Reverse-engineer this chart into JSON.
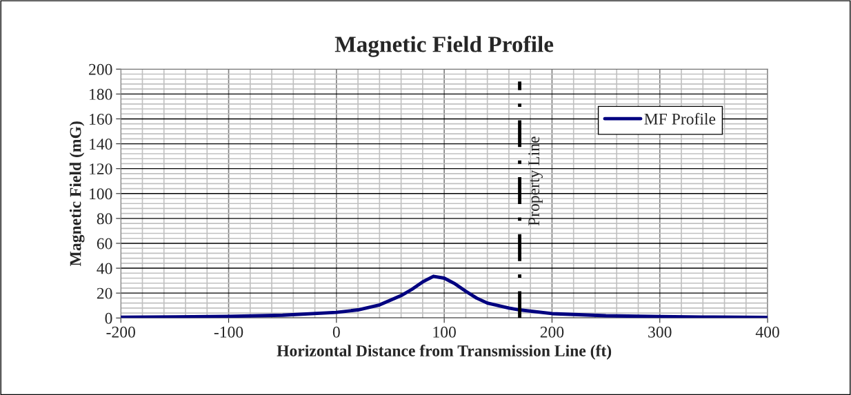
{
  "chart_data": {
    "type": "line",
    "title": "Magnetic Field Profile",
    "xlabel": "Horizontal Distance from Transmission Line (ft)",
    "ylabel": "Magnetic Field (mG)",
    "x": [
      -200,
      -150,
      -100,
      -50,
      0,
      20,
      40,
      60,
      70,
      80,
      90,
      100,
      110,
      120,
      130,
      140,
      160,
      170,
      200,
      250,
      300,
      350,
      400
    ],
    "series": [
      {
        "name": "MF Profile",
        "color": "#000080",
        "values": [
          0.6,
          0.9,
          1.3,
          2.2,
          4.5,
          6.5,
          10.5,
          18,
          23,
          29,
          33.5,
          32,
          27.5,
          21.5,
          16,
          12,
          8,
          6.5,
          3.5,
          1.8,
          1.1,
          0.7,
          0.5
        ]
      }
    ],
    "xlim": [
      -200,
      400
    ],
    "xticks": [
      -200,
      -100,
      0,
      100,
      200,
      300,
      400
    ],
    "ylim": [
      0,
      200
    ],
    "yticks": [
      0,
      20,
      40,
      60,
      80,
      100,
      120,
      140,
      160,
      180,
      200
    ],
    "ref_lines": [
      {
        "axis": "x",
        "value": 170,
        "label": "Property Line",
        "color": "#000000",
        "line_style": "dashed"
      }
    ],
    "grid": true,
    "legend": "top right",
    "marker": "none",
    "line_style": "solid"
  }
}
